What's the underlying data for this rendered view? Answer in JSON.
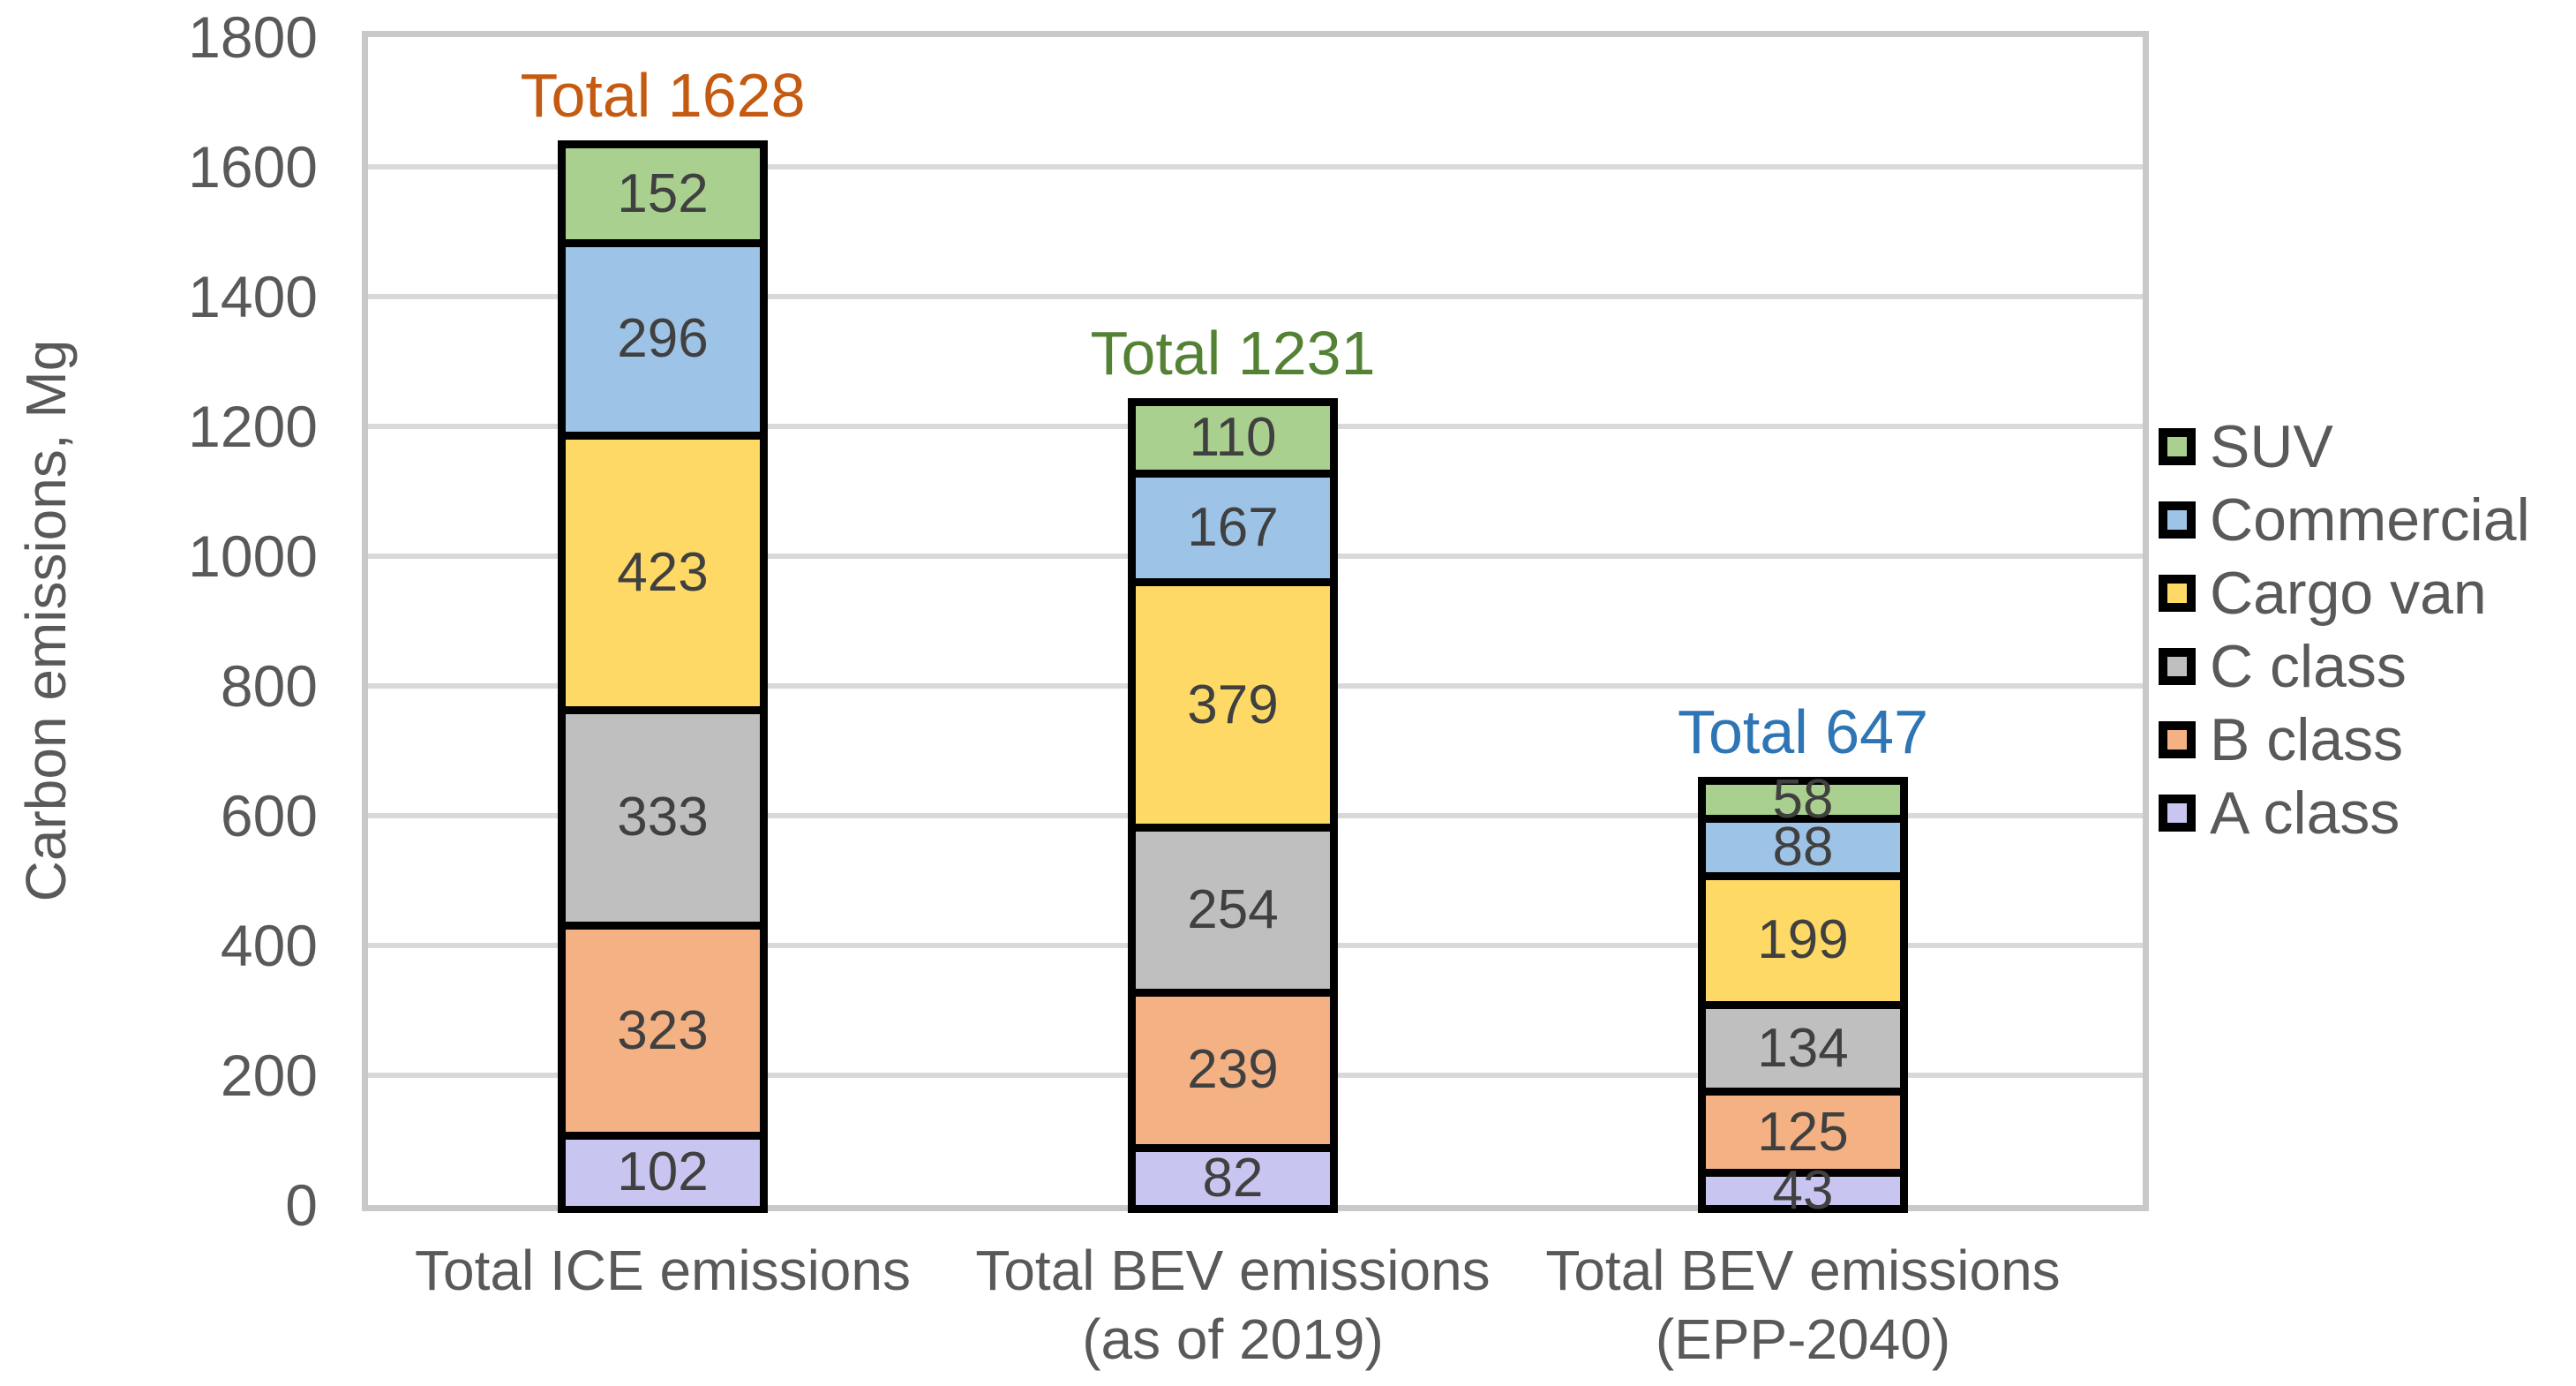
{
  "chart_data": {
    "type": "bar",
    "stacked": true,
    "title": "",
    "xlabel": "",
    "ylabel": "Carbon emissions, Mg",
    "ylim": [
      0,
      1800
    ],
    "ytick_step": 200,
    "yticks": [
      0,
      200,
      400,
      600,
      800,
      1000,
      1200,
      1400,
      1600,
      1800
    ],
    "grid": "horizontal",
    "legend_position": "right",
    "categories": [
      "Total ICE emissions",
      "Total BEV emissions\n(as of 2019)",
      "Total BEV emissions\n(EPP-2040)"
    ],
    "series": [
      {
        "name": "A class",
        "color": "#C9C5F1",
        "values": [
          102,
          82,
          43
        ]
      },
      {
        "name": "B class",
        "color": "#F4B183",
        "values": [
          323,
          239,
          125
        ]
      },
      {
        "name": "C class",
        "color": "#BFBFBF",
        "values": [
          333,
          254,
          134
        ]
      },
      {
        "name": "Cargo van",
        "color": "#FFD966",
        "values": [
          423,
          379,
          199
        ]
      },
      {
        "name": "Commercial",
        "color": "#9DC3E6",
        "values": [
          296,
          167,
          88
        ]
      },
      {
        "name": "SUV",
        "color": "#A9D08E",
        "values": [
          152,
          110,
          58
        ]
      }
    ],
    "totals": [
      {
        "label": "Total 1628",
        "value": 1628,
        "color": "#C55A11"
      },
      {
        "label": "Total 1231",
        "value": 1231,
        "color": "#548235"
      },
      {
        "label": "Total 647",
        "value": 647,
        "color": "#2E75B6"
      }
    ]
  },
  "legend": {
    "items": [
      {
        "label": "SUV",
        "color": "#A9D08E"
      },
      {
        "label": "Commercial",
        "color": "#9DC3E6"
      },
      {
        "label": "Cargo van",
        "color": "#FFD966"
      },
      {
        "label": "C class",
        "color": "#BFBFBF"
      },
      {
        "label": "B class",
        "color": "#F4B183"
      },
      {
        "label": "A class",
        "color": "#C9C5F1"
      }
    ]
  },
  "styles": {
    "value_label_color": "#404040",
    "axis_text_color": "#595959",
    "gridline_color": "#D9D9D9",
    "plot_border_color": "#C9C9C9",
    "bar_border_color": "#000000",
    "background_color": "#FFFFFF"
  }
}
